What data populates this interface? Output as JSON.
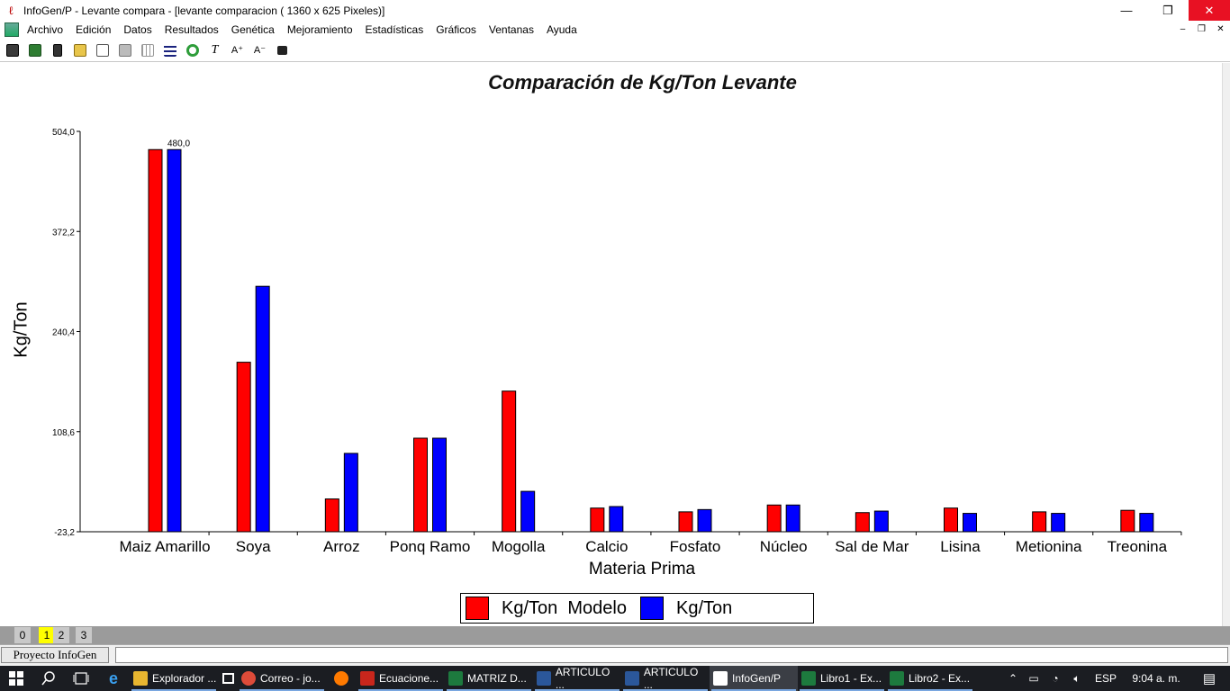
{
  "window": {
    "title": "InfoGen/P - Levante compara - [levante comparacion ( 1360 x 625 Pixeles)]",
    "minimize": "—",
    "maximize": "❐",
    "close": "✕"
  },
  "menu": {
    "items": [
      "Archivo",
      "Edición",
      "Datos",
      "Resultados",
      "Genética",
      "Mejoramiento",
      "Estadísticas",
      "Gráficos",
      "Ventanas",
      "Ayuda"
    ],
    "mdi_minimize": "–",
    "mdi_restore": "❐",
    "mdi_close": "✕"
  },
  "toolbar": {
    "icons": [
      "new-icon",
      "open-icon",
      "delete-icon",
      "print-icon",
      "copy-icon",
      "paste-icon",
      "grid-icon",
      "list-icon",
      "refresh-icon",
      "italic-icon",
      "font-increase-icon",
      "font-decrease-icon",
      "font-color-icon"
    ],
    "italic_glyph": "T",
    "font_up_glyph": "A⁺",
    "font_down_glyph": "A⁻"
  },
  "chart_data": {
    "type": "bar",
    "title": "Comparación de Kg/Ton Levante",
    "xlabel": "Materia Prima",
    "ylabel": "Kg/Ton",
    "ylim": [
      -23.2,
      504.0
    ],
    "yticks": [
      "504,0",
      "372,2",
      "240,4",
      "108,6",
      "-23,2"
    ],
    "ytick_values": [
      504.0,
      372.2,
      240.4,
      108.6,
      -23.2
    ],
    "categories": [
      "Maiz Amarillo",
      "Soya",
      "Arroz",
      "Ponq Ramo",
      "Mogolla",
      "Calcio",
      "Fosfato",
      "Núcleo",
      "Sal de Mar",
      "Lisina",
      "Metionina",
      "Treonina"
    ],
    "series": [
      {
        "name": "Kg/Ton  Modelo",
        "color": "#ff0000",
        "values": [
          480.0,
          200.0,
          20.0,
          100.0,
          162.0,
          8.0,
          3.0,
          12.0,
          2.0,
          8.0,
          3.0,
          5.0
        ]
      },
      {
        "name": "Kg/Ton",
        "color": "#0000ff",
        "values": [
          480.0,
          300.0,
          80.0,
          100.0,
          30.0,
          10.0,
          6.0,
          12.0,
          4.0,
          1.0,
          1.0,
          1.0
        ]
      }
    ],
    "data_label": "480,0",
    "legend_position": "bottom",
    "grid": false
  },
  "page_tabs": [
    "0",
    "1",
    "2",
    "3"
  ],
  "active_page_tab": "1",
  "status": {
    "project": "Proyecto InfoGen"
  },
  "taskbar": {
    "apps": [
      {
        "label": "Explorador ...",
        "color": "#e8b630"
      },
      {
        "label": "Correo - jo...",
        "color": "#dd4b39"
      },
      {
        "label": "",
        "color": "#ff7a00"
      },
      {
        "label": "Ecuacione...",
        "color": "#c8261c"
      },
      {
        "label": "MATRIZ D...",
        "color": "#1d7a3e"
      },
      {
        "label": "ARTICULO ...",
        "color": "#2b579a"
      },
      {
        "label": "ARTICULO ...",
        "color": "#2b579a"
      },
      {
        "label": "InfoGen/P",
        "color": "#ffffff"
      },
      {
        "label": "Libro1 - Ex...",
        "color": "#1d7a3e"
      },
      {
        "label": "Libro2 - Ex...",
        "color": "#1d7a3e"
      }
    ],
    "language": "ESP",
    "time": "9:04 a. m."
  }
}
